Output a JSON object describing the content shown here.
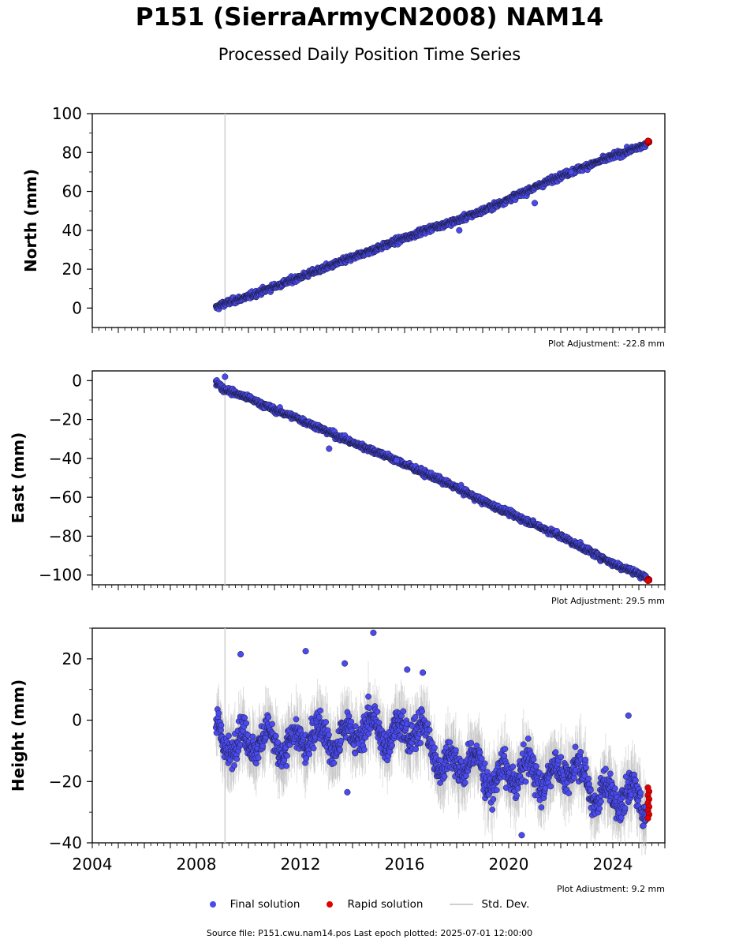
{
  "header": {
    "title": "P151 (SierraArmyCN2008) NAM14",
    "subtitle": "Processed Daily Position Time Series"
  },
  "colors": {
    "final": "#4a4aee",
    "rapid": "#e00000",
    "std_dev": "#b8b8b8",
    "marker_edge": "#1a1a3a"
  },
  "legend": {
    "final": "Final solution",
    "rapid": "Rapid solution",
    "std": "Std. Dev."
  },
  "footer": "Source file: P151.cwu.nam14.pos  Last epoch plotted: 2025-07-01 12:00:00",
  "chart_data": [
    {
      "type": "scatter",
      "ylabel": "North (mm)",
      "xlim": [
        2004,
        2026
      ],
      "ylim": [
        -10,
        100
      ],
      "yticks": [
        0,
        20,
        40,
        60,
        80,
        100
      ],
      "adjustment": "Plot Adjustment: -22.8 mm",
      "series": [
        {
          "name": "Final solution",
          "x": [
            2008.75,
            2009.0,
            2010.0,
            2011.0,
            2012.0,
            2013.0,
            2014.0,
            2015.0,
            2016.0,
            2017.0,
            2018.0,
            2019.0,
            2020.0,
            2021.0,
            2022.0,
            2023.0,
            2024.0,
            2025.3
          ],
          "y": [
            0,
            2,
            6,
            11,
            16,
            21,
            26,
            31,
            36,
            41,
            45,
            50,
            56,
            62,
            68,
            73,
            78,
            84
          ]
        },
        {
          "name": "Rapid solution",
          "x": [
            2025.3,
            2025.5
          ],
          "y": [
            85,
            86
          ]
        }
      ],
      "outliers": [
        [
          2022.4,
          70
        ],
        [
          2021.0,
          54
        ],
        [
          2018.1,
          40
        ]
      ]
    },
    {
      "type": "scatter",
      "ylabel": "East (mm)",
      "xlim": [
        2004,
        2026
      ],
      "ylim": [
        -105,
        5
      ],
      "yticks": [
        0,
        -20,
        -40,
        -60,
        -80,
        -100
      ],
      "adjustment": "Plot Adjustment: 29.5 mm",
      "series": [
        {
          "name": "Final solution",
          "x": [
            2008.75,
            2009.0,
            2010.0,
            2011.0,
            2012.0,
            2013.0,
            2014.0,
            2015.0,
            2016.0,
            2017.0,
            2018.0,
            2019.0,
            2020.0,
            2021.0,
            2022.0,
            2023.0,
            2024.0,
            2025.3
          ],
          "y": [
            0,
            -4,
            -9,
            -15,
            -20,
            -26,
            -32,
            -37,
            -43,
            -49,
            -55,
            -62,
            -68,
            -74,
            -80,
            -87,
            -94,
            -101
          ]
        },
        {
          "name": "Rapid solution",
          "x": [
            2025.3,
            2025.5
          ],
          "y": [
            -102,
            -103
          ]
        }
      ],
      "outliers": [
        [
          2009.1,
          2
        ],
        [
          2013.1,
          -35
        ],
        [
          2015.7,
          -41
        ]
      ]
    },
    {
      "type": "scatter",
      "ylabel": "Height (mm)",
      "xlim": [
        2004,
        2026
      ],
      "ylim": [
        -40,
        30
      ],
      "yticks": [
        20,
        0,
        -20,
        -40
      ],
      "xticks": [
        2004,
        2008,
        2012,
        2016,
        2020,
        2024
      ],
      "adjustment": "Plot Adjustment: 9.2 mm",
      "series": [
        {
          "name": "Final solution",
          "x": [
            2008.75,
            2009.5,
            2010.5,
            2011.5,
            2012.5,
            2013.5,
            2014.5,
            2015.5,
            2016.5,
            2017.5,
            2018.5,
            2019.5,
            2020.5,
            2021.5,
            2022.5,
            2023.5,
            2024.5,
            2025.3
          ],
          "y": [
            -5,
            -8,
            -6,
            -9,
            -4,
            -7,
            -2,
            -5,
            -2,
            -15,
            -13,
            -20,
            -16,
            -19,
            -15,
            -25,
            -24,
            -27
          ]
        },
        {
          "name": "Rapid solution",
          "x": [
            2025.3,
            2025.5
          ],
          "y": [
            -22,
            -32
          ]
        }
      ],
      "outliers": [
        [
          2009.7,
          21.5
        ],
        [
          2012.2,
          22.5
        ],
        [
          2013.7,
          18.5
        ],
        [
          2014.8,
          28.5
        ],
        [
          2016.1,
          16.5
        ],
        [
          2016.7,
          15.5
        ],
        [
          2024.6,
          1.5
        ],
        [
          2020.5,
          -37.5
        ],
        [
          2013.8,
          -23.5
        ]
      ]
    }
  ]
}
